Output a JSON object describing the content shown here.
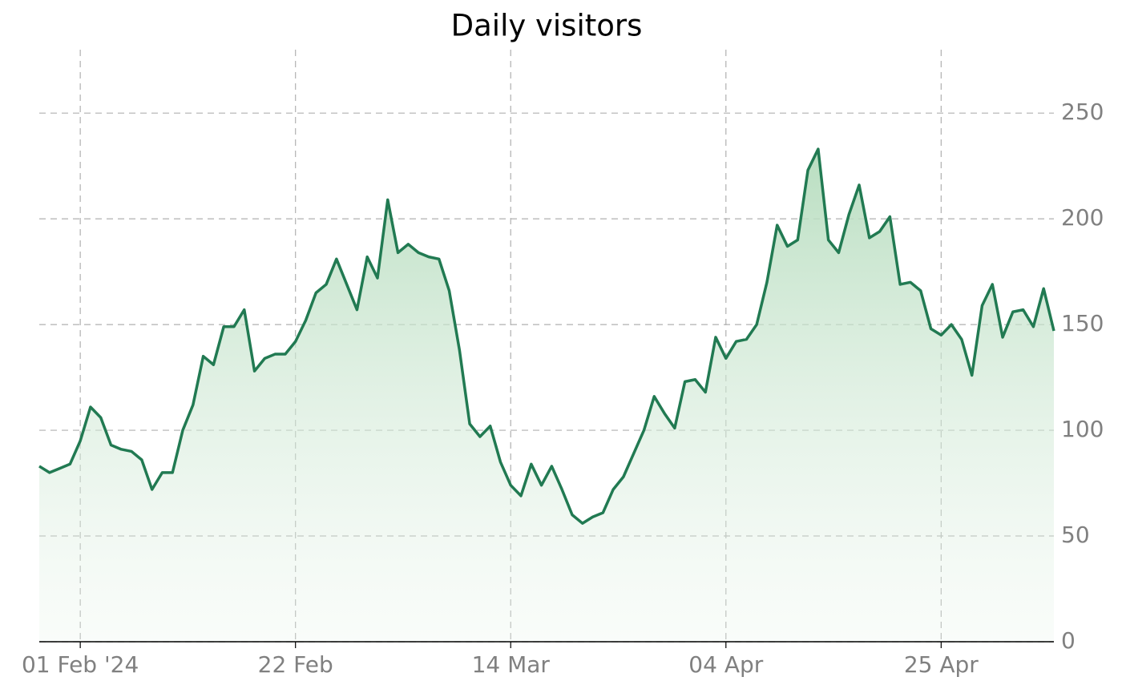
{
  "chart_data": {
    "type": "area",
    "title": "Daily visitors",
    "x": [
      "2024-01-28",
      "2024-01-29",
      "2024-01-30",
      "2024-01-31",
      "2024-02-01",
      "2024-02-02",
      "2024-02-03",
      "2024-02-04",
      "2024-02-05",
      "2024-02-06",
      "2024-02-07",
      "2024-02-08",
      "2024-02-09",
      "2024-02-10",
      "2024-02-11",
      "2024-02-12",
      "2024-02-13",
      "2024-02-14",
      "2024-02-15",
      "2024-02-16",
      "2024-02-17",
      "2024-02-18",
      "2024-02-19",
      "2024-02-20",
      "2024-02-21",
      "2024-02-22",
      "2024-02-23",
      "2024-02-24",
      "2024-02-25",
      "2024-02-26",
      "2024-02-27",
      "2024-02-28",
      "2024-02-29",
      "2024-03-01",
      "2024-03-02",
      "2024-03-03",
      "2024-03-04",
      "2024-03-05",
      "2024-03-06",
      "2024-03-07",
      "2024-03-08",
      "2024-03-09",
      "2024-03-10",
      "2024-03-11",
      "2024-03-12",
      "2024-03-13",
      "2024-03-14",
      "2024-03-15",
      "2024-03-16",
      "2024-03-17",
      "2024-03-18",
      "2024-03-19",
      "2024-03-20",
      "2024-03-21",
      "2024-03-22",
      "2024-03-23",
      "2024-03-24",
      "2024-03-25",
      "2024-03-26",
      "2024-03-27",
      "2024-03-28",
      "2024-03-29",
      "2024-03-30",
      "2024-03-31",
      "2024-04-01",
      "2024-04-02",
      "2024-04-03",
      "2024-04-04",
      "2024-04-05",
      "2024-04-06",
      "2024-04-07",
      "2024-04-08",
      "2024-04-09",
      "2024-04-10",
      "2024-04-11",
      "2024-04-12",
      "2024-04-13",
      "2024-04-14",
      "2024-04-15",
      "2024-04-16",
      "2024-04-17",
      "2024-04-18",
      "2024-04-19",
      "2024-04-20",
      "2024-04-21",
      "2024-04-22",
      "2024-04-23",
      "2024-04-24",
      "2024-04-25",
      "2024-04-26",
      "2024-04-27",
      "2024-04-28",
      "2024-04-29",
      "2024-04-30",
      "2024-05-01",
      "2024-05-02",
      "2024-05-03",
      "2024-05-04",
      "2024-05-05",
      "2024-05-06"
    ],
    "series": [
      {
        "name": "Daily visitors",
        "color": "#217a52",
        "values": [
          83,
          80,
          82,
          84,
          95,
          111,
          106,
          93,
          91,
          90,
          86,
          72,
          80,
          80,
          100,
          112,
          135,
          131,
          149,
          149,
          157,
          128,
          134,
          136,
          136,
          142,
          152,
          165,
          169,
          181,
          169,
          157,
          182,
          172,
          209,
          184,
          188,
          184,
          182,
          181,
          166,
          138,
          103,
          97,
          102,
          85,
          74,
          69,
          84,
          74,
          83,
          72,
          60,
          56,
          59,
          61,
          72,
          78,
          89,
          100,
          116,
          108,
          101,
          123,
          124,
          118,
          144,
          134,
          142,
          143,
          150,
          170,
          197,
          187,
          190,
          223,
          233,
          190,
          184,
          202,
          216,
          191,
          194,
          201,
          169,
          170,
          166,
          148,
          145,
          150,
          143,
          126,
          159,
          169,
          144,
          156,
          157,
          149,
          167,
          147
        ]
      }
    ],
    "xlim": [
      "2024-01-28",
      "2024-05-06"
    ],
    "xticks": [
      {
        "value": "2024-02-01",
        "label": "01 Feb '24"
      },
      {
        "value": "2024-02-22",
        "label": "22 Feb"
      },
      {
        "value": "2024-03-14",
        "label": "14 Mar"
      },
      {
        "value": "2024-04-04",
        "label": "04 Apr"
      },
      {
        "value": "2024-04-25",
        "label": "25 Apr"
      }
    ],
    "ylim": [
      0,
      280
    ],
    "yticks": [
      0,
      50,
      100,
      150,
      200,
      250
    ],
    "grid": true
  }
}
